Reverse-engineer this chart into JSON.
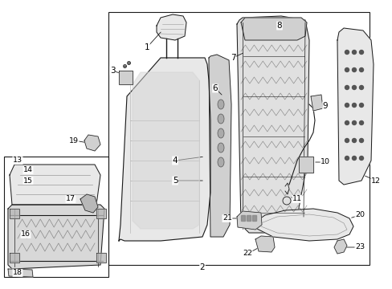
{
  "bg_color": "#ffffff",
  "fig_width": 4.89,
  "fig_height": 3.6,
  "dpi": 100,
  "line_color": "#1a1a1a",
  "fill_light": "#e8e8e8",
  "fill_mid": "#d0d0d0",
  "fill_dark": "#b8b8b8"
}
